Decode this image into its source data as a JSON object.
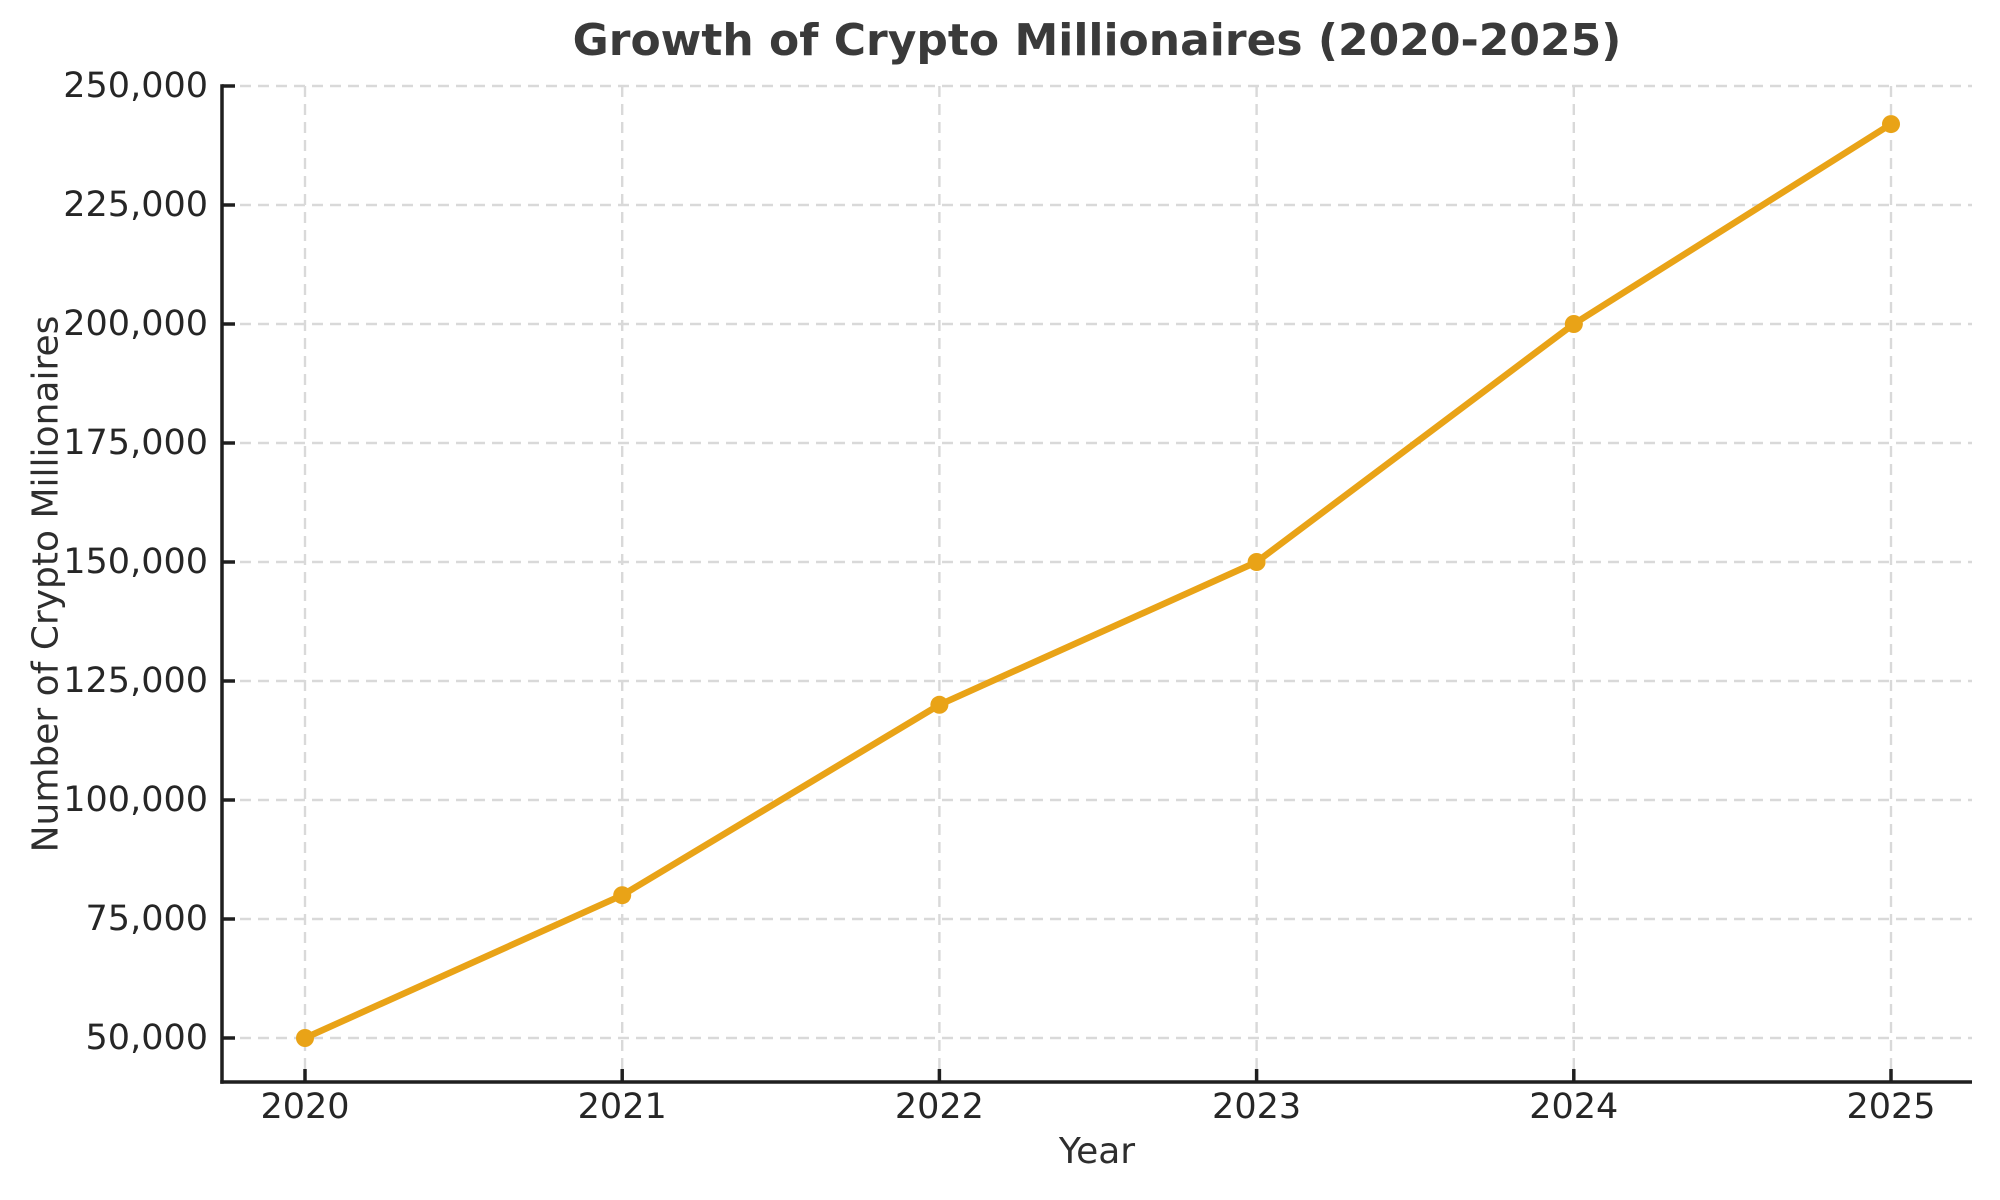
{
  "chart_data": {
    "type": "line",
    "title": "Growth of Crypto Millionaires (2020-2025)",
    "xlabel": "Year",
    "ylabel": "Number of Crypto Millionaires",
    "x": [
      2020,
      2021,
      2022,
      2023,
      2024,
      2025
    ],
    "series": [
      {
        "name": "Crypto Millionaires",
        "values": [
          50000,
          80000,
          120000,
          150000,
          200000,
          242000
        ]
      }
    ],
    "xtick_labels": [
      "2020",
      "2021",
      "2022",
      "2023",
      "2024",
      "2025"
    ],
    "ytick_values": [
      50000,
      75000,
      100000,
      125000,
      150000,
      175000,
      200000,
      225000,
      250000
    ],
    "ytick_labels": [
      "50,000",
      "75,000",
      "100,000",
      "125,000",
      "150,000",
      "175,000",
      "200,000",
      "225,000",
      "250,000"
    ],
    "ylim": [
      40750,
      250000
    ],
    "xlim": [
      2019.75,
      2025.25
    ],
    "grid": true,
    "grid_style": "dashed",
    "legend": false,
    "marker": "circle",
    "colors": {
      "line": "#E9A317",
      "marker": "#E9A317",
      "grid": "#D9D9D9",
      "spine": "#1F1F1F",
      "tick_text": "#262626",
      "title_text": "#3A3A3A",
      "axis_label_text": "#2E2E2E",
      "background": "#FFFFFF"
    }
  }
}
